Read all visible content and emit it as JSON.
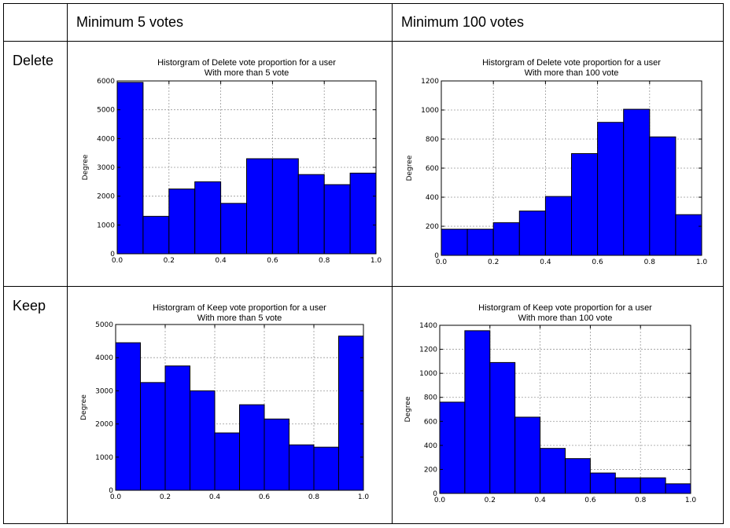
{
  "table": {
    "column_headers": [
      "",
      "Minimum 5 votes",
      "Minimum 100 votes"
    ],
    "row_labels": [
      "Delete",
      "Keep"
    ]
  },
  "chart_data": [
    {
      "type": "bar",
      "title": "Historgram of Delete vote proportion for a user",
      "subtitle": "With more than 5 vote",
      "xlabel": "",
      "ylabel": "Degree",
      "xlim": [
        0.0,
        1.0
      ],
      "ylim": [
        0,
        6000
      ],
      "x_ticks": [
        "0.0",
        "0.2",
        "0.4",
        "0.6",
        "0.8",
        "1.0"
      ],
      "y_ticks": [
        "0",
        "1000",
        "2000",
        "3000",
        "4000",
        "5000",
        "6000"
      ],
      "bin_edges": [
        0.0,
        0.1,
        0.2,
        0.3,
        0.4,
        0.5,
        0.6,
        0.7,
        0.8,
        0.9,
        1.0
      ],
      "values": [
        5950,
        1300,
        2250,
        2500,
        1750,
        3300,
        3300,
        2750,
        2400,
        2800
      ],
      "color": "#0000ff",
      "grid": true
    },
    {
      "type": "bar",
      "title": "Historgram of Delete vote proportion for a user",
      "subtitle": "With more than 100 vote",
      "xlabel": "",
      "ylabel": "Degree",
      "xlim": [
        0.0,
        1.0
      ],
      "ylim": [
        0,
        1200
      ],
      "x_ticks": [
        "0.0",
        "0.2",
        "0.4",
        "0.6",
        "0.8",
        "1.0"
      ],
      "y_ticks": [
        "0",
        "200",
        "400",
        "600",
        "800",
        "1000",
        "1200"
      ],
      "bin_edges": [
        0.0,
        0.1,
        0.2,
        0.3,
        0.4,
        0.5,
        0.6,
        0.7,
        0.8,
        0.9,
        1.0
      ],
      "values": [
        180,
        180,
        225,
        305,
        405,
        700,
        915,
        1005,
        815,
        280
      ],
      "color": "#0000ff",
      "grid": true
    },
    {
      "type": "bar",
      "title": "Historgram of Keep vote proportion for a user",
      "subtitle": "With more than 5 vote",
      "xlabel": "",
      "ylabel": "Degree",
      "xlim": [
        0.0,
        1.0
      ],
      "ylim": [
        0,
        5000
      ],
      "x_ticks": [
        "0.0",
        "0.2",
        "0.4",
        "0.6",
        "0.8",
        "1.0"
      ],
      "y_ticks": [
        "0",
        "1000",
        "2000",
        "3000",
        "4000",
        "5000"
      ],
      "bin_edges": [
        0.0,
        0.1,
        0.2,
        0.3,
        0.4,
        0.5,
        0.6,
        0.7,
        0.8,
        0.9,
        1.0
      ],
      "values": [
        4450,
        3250,
        3750,
        3000,
        1730,
        2580,
        2150,
        1370,
        1300,
        4650
      ],
      "color": "#0000ff",
      "grid": true
    },
    {
      "type": "bar",
      "title": "Historgram of Keep vote proportion for a user",
      "subtitle": "With more than 100 vote",
      "xlabel": "",
      "ylabel": "Degree",
      "xlim": [
        0.0,
        1.0
      ],
      "ylim": [
        0,
        1400
      ],
      "x_ticks": [
        "0.0",
        "0.2",
        "0.4",
        "0.6",
        "0.8",
        "1.0"
      ],
      "y_ticks": [
        "0",
        "200",
        "400",
        "600",
        "800",
        "1000",
        "1200",
        "1400"
      ],
      "bin_edges": [
        0.0,
        0.1,
        0.2,
        0.3,
        0.4,
        0.5,
        0.6,
        0.7,
        0.8,
        0.9,
        1.0
      ],
      "values": [
        760,
        1355,
        1090,
        635,
        375,
        290,
        170,
        130,
        130,
        80
      ],
      "color": "#0000ff",
      "grid": true
    }
  ]
}
